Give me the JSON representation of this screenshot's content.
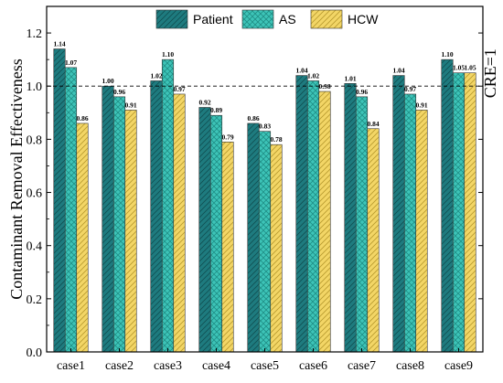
{
  "chart_data": {
    "type": "bar",
    "categories": [
      "case1",
      "case2",
      "case3",
      "case4",
      "case5",
      "case6",
      "case7",
      "case8",
      "case9"
    ],
    "series": [
      {
        "name": "Patient",
        "values": [
          1.14,
          1.0,
          1.02,
          0.92,
          0.86,
          1.04,
          1.01,
          1.04,
          1.1
        ],
        "color": "#1e7b7f",
        "pattern": "diagonal-lines"
      },
      {
        "name": "AS",
        "values": [
          1.07,
          0.96,
          1.1,
          0.89,
          0.83,
          1.02,
          0.96,
          0.97,
          1.05
        ],
        "color": "#3dc4b8",
        "pattern": "crosshatch"
      },
      {
        "name": "HCW",
        "values": [
          0.86,
          0.91,
          0.97,
          0.79,
          0.78,
          0.98,
          0.84,
          0.91,
          1.05
        ],
        "color": "#f3d666",
        "pattern": "diagonal-lines"
      }
    ],
    "value_labels": [
      [
        "1.14",
        "1.00",
        "1.02",
        "0.92",
        "0.86",
        "1.04",
        "1.01",
        "1.04",
        "1.10"
      ],
      [
        "1.07",
        "0.96",
        "1.10",
        "0.89",
        "0.83",
        "1.02",
        "0.96",
        "0.97",
        "1.05"
      ],
      [
        "0.86",
        "0.91",
        "0.97",
        "0.79",
        "0.78",
        "0.98",
        "0.84",
        "0.91",
        "1.05"
      ]
    ],
    "xlabel": "",
    "ylabel": "Contaminant Removal Effectiveness",
    "ylim": [
      0,
      1.3
    ],
    "yticks": [
      "0.0",
      "0.2",
      "0.4",
      "0.6",
      "0.8",
      "1.0",
      "1.2"
    ],
    "reference_line": {
      "value": 1.0,
      "label": "CRE=1",
      "style": "dashed"
    },
    "legend": {
      "placement": "top-center"
    },
    "grid": false
  }
}
